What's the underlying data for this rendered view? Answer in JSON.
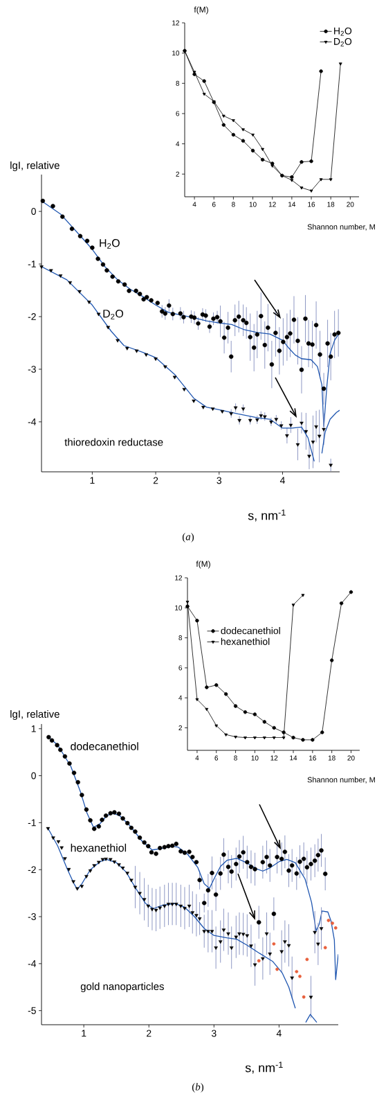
{
  "chart_data": [
    {
      "type": "line",
      "ylabel": "f(M)",
      "xlabel": "Shannon number, M",
      "xlim": [
        3,
        20.9
      ],
      "ylim": [
        0.5,
        12
      ],
      "xticks": [
        4,
        6,
        8,
        10,
        12,
        14,
        16,
        18,
        20
      ],
      "yticks": [
        2,
        4,
        6,
        8,
        10,
        12
      ],
      "legend": "top right",
      "series": [
        {
          "name": "H$_{2}$O",
          "color": "#000000",
          "marker": "circle",
          "x": [
            3,
            4,
            5,
            6,
            7,
            8,
            9,
            10,
            11,
            12,
            13,
            14,
            15,
            16,
            17
          ],
          "values": [
            10.15,
            8.6,
            8.15,
            6.75,
            5.25,
            4.6,
            4.2,
            3.55,
            2.95,
            2.7,
            1.9,
            1.8,
            2.8,
            2.85,
            8.8
          ]
        },
        {
          "name": "D$_{2}$O",
          "color": "#000000",
          "marker": "triangle",
          "x": [
            3,
            4,
            5,
            6,
            7,
            8,
            9,
            10,
            11,
            12,
            13,
            14,
            15,
            16,
            17,
            18,
            19
          ],
          "values": [
            10.15,
            8.75,
            7.3,
            6.8,
            5.85,
            5.55,
            4.95,
            4.6,
            3.65,
            2.55,
            1.9,
            1.6,
            1.1,
            0.9,
            1.65,
            1.65,
            9.3
          ]
        }
      ]
    },
    {
      "type": "scatter",
      "ylabel": "lgI, relative",
      "xlabel": "s, nm$^{-1}$",
      "xlim": [
        0.2,
        4.9
      ],
      "ylim": [
        -4.95,
        0.7
      ],
      "xticks": [
        1,
        2,
        3,
        4
      ],
      "yticks": [
        -4,
        -3,
        -2,
        -1,
        0
      ],
      "annotations": [
        "thioredoxin reductase",
        "(*a*)"
      ],
      "series": [
        {
          "name": "H$_{2}$O",
          "type": "scatter",
          "color": "#000000",
          "marker": "circle",
          "x": [
            0.22,
            0.38,
            0.53,
            0.68,
            0.81,
            0.92,
            1.0,
            1.09,
            1.17,
            1.23,
            1.32,
            1.41,
            1.51,
            1.58,
            1.69,
            1.75,
            1.81,
            1.86,
            1.93,
            2.03,
            2.1,
            2.15,
            2.21,
            2.27,
            2.39,
            2.44,
            2.56,
            2.61,
            2.67,
            2.74,
            2.79,
            2.85,
            2.91,
            2.97,
            3.02,
            3.08,
            3.14,
            3.19,
            3.25,
            3.31,
            3.38,
            3.43,
            3.49,
            3.55,
            3.6,
            3.66,
            3.72,
            3.77,
            3.83,
            3.89,
            3.95,
            4.01,
            4.07,
            4.12,
            4.18,
            4.24,
            4.3,
            4.36,
            4.41,
            4.47,
            4.53,
            4.59,
            4.65,
            4.71,
            4.76,
            4.82,
            4.88
          ],
          "values": [
            0.2,
            0.1,
            -0.1,
            -0.33,
            -0.47,
            -0.56,
            -0.69,
            -0.9,
            -1.01,
            -1.12,
            -1.24,
            -1.33,
            -1.39,
            -1.51,
            -1.51,
            -1.57,
            -1.67,
            -1.63,
            -1.69,
            -1.74,
            -1.9,
            -1.94,
            -1.79,
            -1.95,
            -1.94,
            -2.01,
            -2.0,
            -2.02,
            -2.13,
            -1.96,
            -1.98,
            -2.19,
            -2.04,
            -2.01,
            -2.09,
            -2.4,
            -2.21,
            -2.76,
            -2.07,
            -2.0,
            -2.07,
            -2.12,
            -2.39,
            -2.59,
            -2.34,
            -1.99,
            -2.54,
            -2.21,
            -2.91,
            -2.31,
            -2.65,
            -2.48,
            -2.39,
            -2.32,
            -2.06,
            -2.46,
            -3.01,
            -2.04,
            -2.51,
            -2.53,
            -2.16,
            -2.72,
            -3.37,
            -2.51,
            -2.76,
            -2.34,
            -2.31
          ],
          "errors": [
            null,
            null,
            null,
            null,
            null,
            null,
            null,
            null,
            null,
            null,
            null,
            null,
            null,
            null,
            null,
            null,
            null,
            null,
            null,
            null,
            0.12,
            0.12,
            0.12,
            0.12,
            0.12,
            0.12,
            0.12,
            0.12,
            0.12,
            0.12,
            0.12,
            0.12,
            0.12,
            0.12,
            0.3,
            0.3,
            0.3,
            0.3,
            0.3,
            0.3,
            0.3,
            0.3,
            0.45,
            0.45,
            0.45,
            0.45,
            0.45,
            0.45,
            0.45,
            0.45,
            0.45,
            0.45,
            0.45,
            0.45,
            0.45,
            0.45,
            0.45,
            0.45,
            0.45,
            0.45,
            0.45,
            0.45,
            0.3,
            0.45,
            0.45,
            0.45,
            0.45
          ]
        },
        {
          "type": "line",
          "color": "#1f56b0",
          "marker": "none",
          "x": [
            0.2,
            0.5,
            0.8,
            1.0,
            1.2,
            1.4,
            1.6,
            1.8,
            2.0,
            2.2,
            2.4,
            2.6,
            2.8,
            3.0,
            3.2,
            3.4,
            3.6,
            3.8,
            4.0,
            4.1,
            4.2,
            4.3,
            4.45,
            4.55,
            4.62,
            4.65,
            4.7,
            4.75,
            4.82,
            4.9
          ],
          "values": [
            0.2,
            -0.05,
            -0.45,
            -0.72,
            -1.05,
            -1.3,
            -1.48,
            -1.62,
            -1.78,
            -1.92,
            -1.97,
            -2.02,
            -2.08,
            -2.12,
            -2.15,
            -2.25,
            -2.3,
            -2.33,
            -2.45,
            -2.6,
            -2.73,
            -2.8,
            -2.82,
            -2.95,
            -3.3,
            -4.09,
            -3.3,
            -2.7,
            -2.45,
            -2.3
          ]
        },
        {
          "name": "D$_{2}$O",
          "type": "scatter",
          "color": "#000000",
          "marker": "triangle",
          "x": [
            0.2,
            0.35,
            0.5,
            0.65,
            0.8,
            0.95,
            1.1,
            1.25,
            1.4,
            1.55,
            1.7,
            1.85,
            2.0,
            2.15,
            2.3,
            2.45,
            2.6,
            2.75,
            2.9,
            3.05,
            3.19,
            3.26,
            3.32,
            3.38,
            3.49,
            3.6,
            3.66,
            3.72,
            3.82,
            3.9,
            3.98,
            4.07,
            4.13,
            4.24,
            4.3,
            4.37,
            4.42,
            4.48,
            4.53,
            4.58,
            4.65,
            4.76
          ],
          "values": [
            -1.05,
            -1.12,
            -1.22,
            -1.35,
            -1.52,
            -1.72,
            -1.95,
            -2.2,
            -2.45,
            -2.6,
            -2.65,
            -2.72,
            -2.8,
            -2.95,
            -3.15,
            -3.38,
            -3.6,
            -3.72,
            -3.75,
            -3.8,
            -3.84,
            -3.73,
            -3.97,
            -3.75,
            -3.97,
            -3.96,
            -3.88,
            -3.9,
            -4.0,
            -3.95,
            -4.07,
            -4.26,
            -4.06,
            -4.43,
            -4.02,
            -4.18,
            -4.65,
            -4.38,
            -4.09,
            -4.27,
            -4.14,
            -4.82
          ],
          "errors": [
            null,
            null,
            null,
            null,
            null,
            null,
            null,
            null,
            null,
            null,
            null,
            null,
            null,
            null,
            null,
            null,
            null,
            null,
            null,
            null,
            0.08,
            0.08,
            0.08,
            0.08,
            0.08,
            0.08,
            0.08,
            0.08,
            0.08,
            0.08,
            0.08,
            0.15,
            0.15,
            0.3,
            0.2,
            0.35,
            0.25,
            0.5,
            0.3,
            0.5,
            0.3,
            0.12
          ]
        },
        {
          "type": "line",
          "color": "#1f56b0",
          "marker": "none",
          "x": [
            0.2,
            0.6,
            1.0,
            1.3,
            1.5,
            1.8,
            2.0,
            2.3,
            2.6,
            2.8,
            3.0,
            3.3,
            3.6,
            3.8,
            4.0,
            4.15,
            4.3,
            4.4,
            4.5,
            4.55,
            4.58,
            4.6,
            4.62,
            4.67,
            4.75,
            4.85,
            4.9
          ],
          "values": [
            -1.05,
            -1.3,
            -1.78,
            -2.28,
            -2.55,
            -2.68,
            -2.78,
            -3.1,
            -3.55,
            -3.72,
            -3.77,
            -3.85,
            -3.92,
            -3.95,
            -4.12,
            -4.12,
            -4.1,
            -4.3,
            -4.75,
            null,
            null,
            null,
            -4.6,
            -4.2,
            -3.95,
            -3.82,
            -3.78
          ]
        }
      ]
    },
    {
      "type": "line",
      "ylabel": "f(M)",
      "xlabel": "Shannon number, M",
      "xlim": [
        3,
        20.9
      ],
      "ylim": [
        0.5,
        12
      ],
      "xticks": [
        4,
        6,
        8,
        10,
        12,
        14,
        16,
        18,
        20
      ],
      "yticks": [
        2,
        4,
        6,
        8,
        10,
        12
      ],
      "legend": "left",
      "series": [
        {
          "name": "dodecanethiol",
          "color": "#000000",
          "marker": "circle",
          "x": [
            3,
            4,
            5,
            6,
            7,
            8,
            9,
            10,
            11,
            12,
            13,
            14,
            15,
            16,
            17,
            18,
            19,
            20
          ],
          "values": [
            10.1,
            9.15,
            4.7,
            4.85,
            4.25,
            3.45,
            3.05,
            2.9,
            2.4,
            2.0,
            1.7,
            1.35,
            1.2,
            1.2,
            1.7,
            6.5,
            10.3,
            11.05
          ]
        },
        {
          "name": "hexanethiol",
          "color": "#000000",
          "marker": "triangle",
          "x": [
            3,
            4,
            5,
            6,
            7,
            8,
            9,
            10,
            11,
            12,
            13,
            14,
            15
          ],
          "values": [
            10.4,
            3.9,
            3.25,
            2.15,
            1.55,
            1.4,
            1.35,
            1.35,
            1.35,
            1.35,
            1.35,
            10.2,
            10.85
          ]
        }
      ]
    },
    {
      "type": "scatter",
      "ylabel": "lgI, relative",
      "xlabel": "s, nm$^{-1}$",
      "xlim": [
        0.35,
        4.91
      ],
      "ylim": [
        -5.3,
        1.1
      ],
      "xticks": [
        1,
        2,
        3,
        4
      ],
      "yticks": [
        -5,
        -4,
        -3,
        -2,
        -1,
        0,
        1
      ],
      "annotations": [
        "gold nanoparticles",
        "(*b*)"
      ],
      "series": [
        {
          "name": "dodecanethiol",
          "type": "scatter",
          "color": "#000000",
          "marker": "circle",
          "x": [
            0.46,
            0.51,
            0.59,
            0.64,
            0.71,
            0.78,
            0.85,
            0.91,
            0.97,
            1.04,
            1.1,
            1.16,
            1.23,
            1.28,
            1.34,
            1.41,
            1.47,
            1.54,
            1.6,
            1.67,
            1.73,
            1.79,
            1.86,
            1.93,
            1.99,
            2.04,
            2.11,
            2.17,
            2.24,
            2.3,
            2.36,
            2.42,
            2.49,
            2.55,
            2.62,
            2.67,
            2.73,
            2.78,
            2.85,
            2.91,
            2.97,
            3.03,
            3.1,
            3.15,
            3.22,
            3.27,
            3.34,
            3.39,
            3.45,
            3.51,
            3.57,
            3.63,
            3.69,
            3.75,
            3.81,
            3.86,
            3.92,
            3.97,
            4.04,
            4.09,
            4.15,
            4.2,
            4.27,
            4.32,
            4.38,
            4.43,
            4.49,
            4.55,
            4.6,
            4.65,
            4.71
          ],
          "values": [
            0.82,
            0.75,
            0.65,
            0.55,
            0.41,
            0.26,
            0.06,
            -0.14,
            -0.41,
            -0.72,
            -0.95,
            -1.13,
            -1.08,
            -0.94,
            -0.85,
            -0.8,
            -0.78,
            -0.81,
            -0.91,
            -1.01,
            -1.11,
            -1.19,
            -1.32,
            -1.42,
            -1.5,
            -1.63,
            -1.66,
            -1.54,
            -1.52,
            -1.5,
            -1.49,
            -1.45,
            -1.61,
            -1.64,
            -1.62,
            -1.73,
            -1.84,
            -2.22,
            -2.71,
            -2.44,
            -2.07,
            -2.53,
            -2.08,
            -1.68,
            -1.94,
            -2.04,
            -1.88,
            -1.72,
            -1.63,
            -1.84,
            -1.94,
            -1.99,
            -3.12,
            -1.84,
            -1.73,
            -1.91,
            -2.94,
            -1.73,
            -1.77,
            -1.62,
            -2.02,
            -1.91,
            -2.08,
            -1.83,
            -1.77,
            -1.95,
            -1.88,
            -1.81,
            -1.69,
            -1.59,
            -2.09
          ],
          "errors": [
            null,
            null,
            null,
            null,
            null,
            null,
            null,
            null,
            null,
            null,
            null,
            null,
            null,
            null,
            null,
            null,
            null,
            null,
            null,
            null,
            null,
            null,
            null,
            null,
            null,
            null,
            null,
            null,
            null,
            null,
            null,
            null,
            null,
            null,
            null,
            null,
            null,
            0.2,
            0.2,
            0.35,
            0.35,
            0.35,
            0.35,
            0.35,
            0.35,
            0.35,
            0.35,
            0.35,
            0.35,
            0.35,
            0.35,
            0.35,
            0.35,
            0.35,
            0.35,
            0.35,
            0.35,
            0.35,
            0.35,
            0.35,
            0.35,
            0.35,
            0.35,
            0.35,
            0.35,
            0.35,
            0.35,
            0.35,
            0.35,
            0.35,
            0.35
          ]
        },
        {
          "type": "line",
          "color": "#1f56b0",
          "marker": "none",
          "x": [
            0.46,
            0.6,
            0.8,
            0.95,
            1.05,
            1.15,
            1.25,
            1.35,
            1.45,
            1.55,
            1.7,
            1.9,
            2.05,
            2.2,
            2.35,
            2.45,
            2.6,
            2.75,
            2.85,
            2.93,
            3.0,
            3.1,
            3.2,
            3.35,
            3.5,
            3.65,
            3.75,
            3.85,
            4.0,
            4.12,
            4.25,
            4.4,
            4.5,
            4.57,
            4.62,
            4.66,
            4.75,
            4.8,
            4.85,
            4.87,
            4.91
          ],
          "values": [
            0.82,
            0.65,
            0.2,
            -0.35,
            -0.8,
            -1.1,
            -1.02,
            -0.85,
            -0.8,
            -0.85,
            -1.05,
            -1.4,
            -1.58,
            -1.55,
            -1.5,
            -1.52,
            -1.68,
            -1.95,
            -2.3,
            -2.4,
            -2.2,
            -1.93,
            -1.8,
            -1.76,
            -1.85,
            -1.98,
            -2.03,
            -1.97,
            -1.83,
            -1.78,
            -1.85,
            -2.2,
            -2.7,
            -3.3,
            -3.15,
            -2.88,
            -2.9,
            -3.1,
            -3.5,
            -4.34,
            -3.8
          ]
        },
        {
          "name": "hexanethiol",
          "type": "scatter",
          "color": "#000000",
          "marker": "triangle",
          "x": [
            0.45,
            0.53,
            0.61,
            0.66,
            0.71,
            0.77,
            0.84,
            0.9,
            0.97,
            1.04,
            1.1,
            1.16,
            1.23,
            1.29,
            1.34,
            1.41,
            1.47,
            1.54,
            1.6,
            1.67,
            1.73,
            1.79,
            1.86,
            1.93,
            1.99,
            2.05,
            2.11,
            2.17,
            2.24,
            2.3,
            2.36,
            2.42,
            2.49,
            2.55,
            2.62,
            2.67,
            2.73,
            2.78,
            2.85,
            2.91,
            2.97,
            3.03,
            3.1,
            3.15,
            3.22,
            3.27,
            3.34,
            3.39,
            3.45,
            3.51,
            3.57,
            3.63,
            3.75,
            3.81,
            3.86,
            4.04,
            4.09,
            4.15,
            4.2,
            4.49,
            4.55,
            4.6,
            4.65
          ],
          "values": [
            -1.12,
            -1.32,
            -1.4,
            -1.53,
            -1.76,
            -1.99,
            -2.25,
            -2.4,
            -2.35,
            -2.14,
            -2.02,
            -1.91,
            -1.84,
            -1.78,
            -1.77,
            -1.78,
            -1.83,
            -1.89,
            -1.96,
            -2.07,
            -2.22,
            -2.37,
            -2.5,
            -2.63,
            -2.77,
            -2.84,
            -2.86,
            -2.81,
            -2.77,
            -2.73,
            -2.73,
            -2.73,
            -2.77,
            -2.82,
            -2.77,
            -2.91,
            -2.97,
            -3.04,
            -3.31,
            -3.31,
            -3.31,
            -3.66,
            -3.53,
            -3.28,
            -3.36,
            -3.66,
            -3.43,
            -3.36,
            -3.37,
            -3.4,
            -3.62,
            -4.02,
            -3.89,
            -3.36,
            -3.79,
            -3.74,
            -3.53,
            -3.61,
            -4.3,
            -4.71,
            -3.33,
            -3.58,
            -3.25
          ],
          "errors": [
            null,
            null,
            null,
            null,
            null,
            null,
            null,
            null,
            null,
            null,
            null,
            null,
            null,
            null,
            null,
            null,
            null,
            null,
            null,
            null,
            null,
            0.45,
            0.45,
            0.45,
            0.45,
            0.45,
            0.45,
            0.45,
            0.45,
            0.45,
            0.45,
            0.45,
            0.45,
            0.45,
            0.45,
            0.45,
            0.45,
            0.35,
            0.35,
            0.45,
            0.45,
            0.45,
            0.45,
            0.45,
            0.45,
            0.45,
            0.45,
            0.45,
            0.45,
            0.45,
            0.45,
            0.45,
            0.45,
            0.45,
            0.45,
            0.45,
            0.45,
            0.45,
            0.45,
            0.45,
            0.45,
            0.45,
            0.45
          ]
        },
        {
          "type": "line",
          "color": "#1f56b0",
          "marker": "none",
          "x": [
            0.45,
            0.6,
            0.75,
            0.85,
            0.9,
            0.97,
            1.1,
            1.25,
            1.35,
            1.5,
            1.65,
            1.8,
            1.95,
            2.07,
            2.2,
            2.4,
            2.55,
            2.7,
            2.85,
            3.0,
            3.2,
            3.35,
            3.5,
            3.7,
            3.9,
            4.05,
            4.15,
            4.25,
            4.3,
            4.35,
            4.41,
            4.48,
            4.58
          ],
          "values": [
            -1.12,
            -1.5,
            -2.0,
            -2.3,
            -2.42,
            -2.3,
            -2.0,
            -1.83,
            -1.78,
            -1.85,
            -2.05,
            -2.4,
            -2.72,
            -2.83,
            -2.76,
            -2.72,
            -2.8,
            -3.0,
            -3.25,
            -3.4,
            -3.45,
            -3.48,
            -3.6,
            -3.78,
            -3.95,
            -4.2,
            -4.5,
            -4.95,
            null,
            null,
            -5.25,
            -5.08,
            -5.25
          ]
        },
        {
          "type": "scatter",
          "color": "#e8603c",
          "marker": "circle",
          "x": [
            3.69,
            3.92,
            3.97,
            4.27,
            4.32,
            4.38,
            4.43,
            4.71,
            4.76,
            4.82,
            4.87
          ],
          "values": [
            -3.94,
            -3.58,
            -4.12,
            -4.17,
            -4.27,
            -4.71,
            -3.91,
            -3.66,
            -3.08,
            -3.14,
            -3.24
          ]
        }
      ]
    }
  ]
}
